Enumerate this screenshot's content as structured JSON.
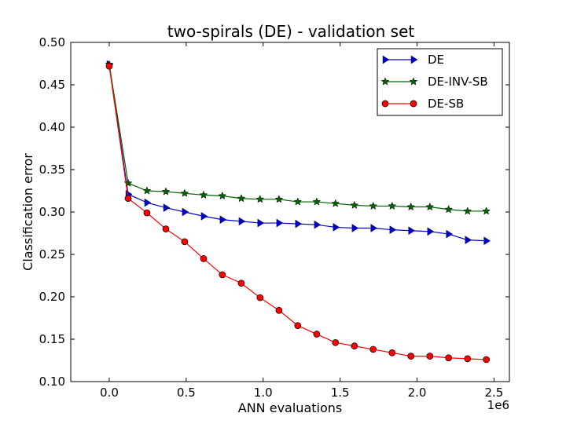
{
  "chart_data": {
    "type": "line",
    "title": "two-spirals (DE) - validation set",
    "xlabel": "ANN evaluations",
    "ylabel": "Classification error",
    "x_multiplier_label": "1e6",
    "xlim": [
      -0.25,
      2.6
    ],
    "ylim": [
      0.1,
      0.5
    ],
    "xticks": [
      0.0,
      0.5,
      1.0,
      1.5,
      2.0,
      2.5
    ],
    "xtick_labels": [
      "0.0",
      "0.5",
      "1.0",
      "1.5",
      "2.0",
      "2.5"
    ],
    "yticks": [
      0.1,
      0.15,
      0.2,
      0.25,
      0.3,
      0.35,
      0.4,
      0.45,
      0.5
    ],
    "ytick_labels": [
      "0.10",
      "0.15",
      "0.20",
      "0.25",
      "0.30",
      "0.35",
      "0.40",
      "0.45",
      "0.50"
    ],
    "grid": false,
    "legend_position": "top-right",
    "x": [
      0.0,
      0.123,
      0.245,
      0.368,
      0.49,
      0.613,
      0.735,
      0.858,
      0.98,
      1.103,
      1.225,
      1.348,
      1.47,
      1.593,
      1.715,
      1.838,
      1.96,
      2.083,
      2.205,
      2.328,
      2.45
    ],
    "series": [
      {
        "name": "DE",
        "color": "#0000cc",
        "marker": "triangle-right",
        "values": [
          0.474,
          0.321,
          0.311,
          0.305,
          0.3,
          0.295,
          0.291,
          0.289,
          0.287,
          0.287,
          0.286,
          0.285,
          0.282,
          0.281,
          0.281,
          0.279,
          0.278,
          0.277,
          0.274,
          0.267,
          0.266
        ]
      },
      {
        "name": "DE-INV-SB",
        "color": "#006400",
        "marker": "star",
        "values": [
          0.474,
          0.334,
          0.325,
          0.324,
          0.322,
          0.32,
          0.319,
          0.316,
          0.315,
          0.315,
          0.312,
          0.312,
          0.31,
          0.308,
          0.307,
          0.307,
          0.306,
          0.306,
          0.303,
          0.301,
          0.301
        ]
      },
      {
        "name": "DE-SB",
        "color": "#ff0000",
        "marker": "circle",
        "values": [
          0.472,
          0.316,
          0.299,
          0.28,
          0.265,
          0.245,
          0.226,
          0.216,
          0.199,
          0.184,
          0.166,
          0.156,
          0.146,
          0.142,
          0.138,
          0.134,
          0.13,
          0.13,
          0.128,
          0.127,
          0.126
        ]
      }
    ]
  }
}
